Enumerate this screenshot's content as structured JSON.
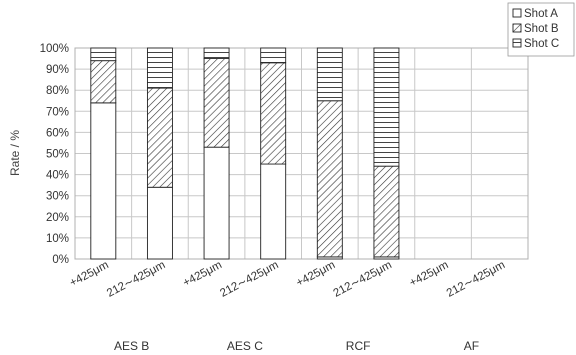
{
  "chart_data": {
    "type": "bar",
    "stacked": true,
    "ylabel": "Rate / %",
    "ylim": [
      0,
      100
    ],
    "yticks": [
      "0%",
      "10%",
      "20%",
      "30%",
      "40%",
      "50%",
      "60%",
      "70%",
      "80%",
      "90%",
      "100%"
    ],
    "grid": true,
    "legend_position": "top-right",
    "categories": [
      "+425μm",
      "212∼425μm",
      "+425μm",
      "212∼425μm",
      "+425μm",
      "212∼425μm",
      "+425μm",
      "212∼425μm"
    ],
    "groups": [
      {
        "label": "AES B",
        "categories": [
          "+425μm",
          "212∼425μm"
        ]
      },
      {
        "label": "AES C",
        "categories": [
          "+425μm",
          "212∼425μm"
        ]
      },
      {
        "label": "RCF",
        "categories": [
          "+425μm",
          "212∼425μm"
        ]
      },
      {
        "label": "AF",
        "categories": [
          "+425μm",
          "212∼425μm"
        ]
      }
    ],
    "series": [
      {
        "name": "Shot A",
        "pattern": "plain",
        "values": [
          74,
          34,
          53,
          45,
          1,
          1,
          null,
          null
        ]
      },
      {
        "name": "Shot B",
        "pattern": "diagonal",
        "values": [
          20,
          47,
          42,
          48,
          74,
          43,
          null,
          null
        ]
      },
      {
        "name": "Shot C",
        "pattern": "horizontal",
        "values": [
          6,
          19,
          5,
          7,
          25,
          56,
          null,
          null
        ]
      }
    ]
  }
}
